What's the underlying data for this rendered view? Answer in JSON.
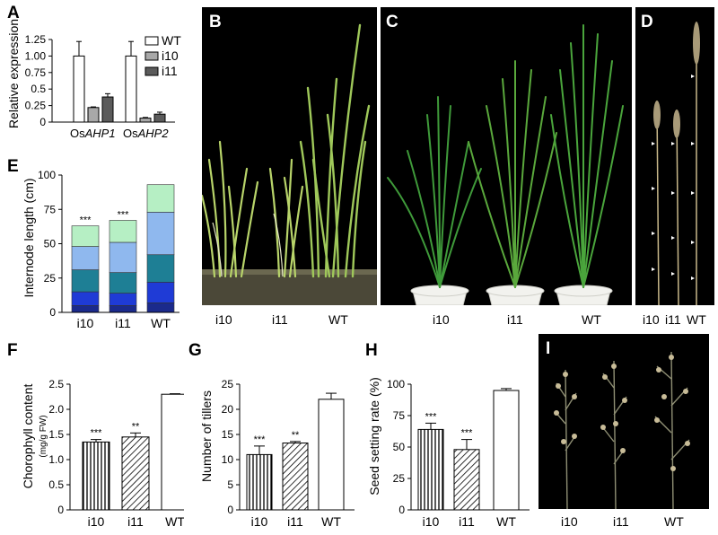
{
  "panels": {
    "A": {
      "letter": "A",
      "ylabel": "Relative expression",
      "legend": [
        "WT",
        "i10",
        "i11"
      ],
      "gene_prefix": "Os",
      "genes": [
        "AHP1",
        "AHP2"
      ]
    },
    "B": {
      "letter": "B",
      "labels": [
        "i10",
        "i11",
        "WT"
      ]
    },
    "C": {
      "letter": "C",
      "labels": [
        "i10",
        "i11",
        "WT"
      ]
    },
    "D": {
      "letter": "D",
      "labels": [
        "i10",
        "i11",
        "WT"
      ]
    },
    "E": {
      "letter": "E",
      "ylabel": "Internode length (cm)"
    },
    "F": {
      "letter": "F",
      "ylabel": "Chorophyll content",
      "ylabel_unit": "(mg/g FW)"
    },
    "G": {
      "letter": "G",
      "ylabel": "Number of tillers"
    },
    "H": {
      "letter": "H",
      "ylabel": "Seed setting rate (%)"
    },
    "I": {
      "letter": "I",
      "labels": [
        "i10",
        "i11",
        "WT"
      ]
    }
  },
  "chart_data": [
    {
      "id": "A",
      "type": "bar",
      "categories": [
        "OsAHP1",
        "OsAHP2"
      ],
      "series": [
        {
          "name": "WT",
          "values": [
            1.0,
            1.0
          ],
          "errors": [
            0.22,
            0.22
          ]
        },
        {
          "name": "i10",
          "values": [
            0.22,
            0.06
          ],
          "errors": [
            0.01,
            0.01
          ]
        },
        {
          "name": "i11",
          "values": [
            0.38,
            0.12
          ],
          "errors": [
            0.05,
            0.03
          ]
        }
      ],
      "ylabel": "Relative expression",
      "ylim": [
        0,
        1.25
      ],
      "yticks": [
        "0",
        "0.25",
        "0.5",
        "0.75",
        "1.00",
        "1.25"
      ],
      "legend_position": "top-right"
    },
    {
      "id": "E",
      "type": "bar",
      "stacked": true,
      "categories": [
        "i10",
        "i11",
        "WT"
      ],
      "segments": [
        [
          5,
          10,
          16,
          17,
          15
        ],
        [
          5,
          9,
          15,
          22,
          16
        ],
        [
          7,
          15,
          20,
          31,
          20
        ]
      ],
      "segment_colors": [
        "#1b2a8c",
        "#1f3bd6",
        "#1e7f95",
        "#8fb8ee",
        "#b6efc4"
      ],
      "annotations": [
        "***",
        "***",
        ""
      ],
      "ylabel": "Internode length (cm)",
      "ylim": [
        0,
        100
      ],
      "yticks": [
        "0",
        "25",
        "50",
        "75",
        "100"
      ]
    },
    {
      "id": "F",
      "type": "bar",
      "categories": [
        "i10",
        "i11",
        "WT"
      ],
      "values": [
        1.35,
        1.45,
        2.3
      ],
      "errors": [
        0.05,
        0.08,
        0.01
      ],
      "annotations": [
        "***",
        "**",
        ""
      ],
      "ylabel": "Chorophyll content",
      "ylim": [
        0,
        2.5
      ],
      "yticks": [
        "0",
        "0.5",
        "1.0",
        "1.5",
        "2.0",
        "2.5"
      ]
    },
    {
      "id": "G",
      "type": "bar",
      "categories": [
        "i10",
        "i11",
        "WT"
      ],
      "values": [
        11,
        13.3,
        22
      ],
      "errors": [
        1.7,
        0.3,
        1.2
      ],
      "annotations": [
        "***",
        "**",
        ""
      ],
      "ylabel": "Number of tillers",
      "ylim": [
        0,
        25
      ],
      "yticks": [
        "0",
        "5",
        "10",
        "15",
        "20",
        "25"
      ]
    },
    {
      "id": "H",
      "type": "bar",
      "categories": [
        "i10",
        "i11",
        "WT"
      ],
      "values": [
        64,
        48,
        95
      ],
      "errors": [
        5,
        8,
        1.5
      ],
      "annotations": [
        "***",
        "***",
        ""
      ],
      "ylabel": "Seed setting rate (%)",
      "ylim": [
        0,
        100
      ],
      "yticks": [
        "0",
        "25",
        "50",
        "75",
        "100"
      ]
    }
  ]
}
